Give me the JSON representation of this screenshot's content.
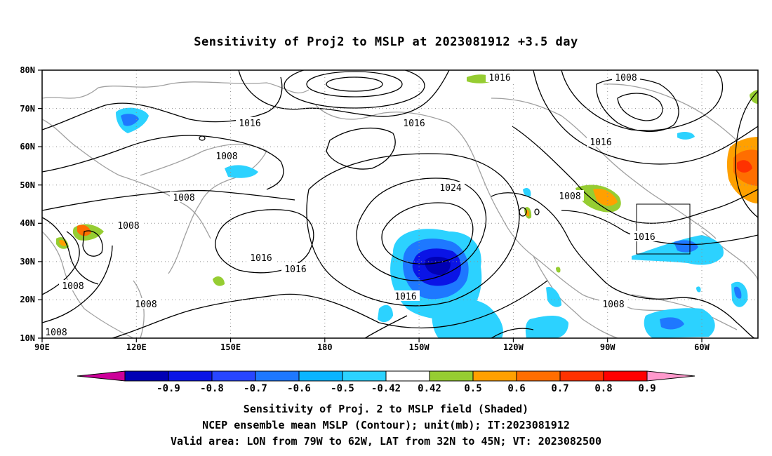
{
  "title": "Sensitivity of Proj2 to MSLP at 2023081912 +3.5 day",
  "axes": {
    "y_ticks": [
      "80N",
      "70N",
      "60N",
      "50N",
      "40N",
      "30N",
      "20N",
      "10N"
    ],
    "x_ticks": [
      "90E",
      "120E",
      "150E",
      "180",
      "150W",
      "120W",
      "90W",
      "60W"
    ]
  },
  "contour_labels": [
    {
      "text": "1016"
    },
    {
      "text": "1008"
    },
    {
      "text": "1016"
    },
    {
      "text": "1016"
    },
    {
      "text": "1008"
    },
    {
      "text": "1024"
    },
    {
      "text": "1016"
    },
    {
      "text": "1008"
    },
    {
      "text": "1008"
    },
    {
      "text": "1008"
    },
    {
      "text": "1016"
    },
    {
      "text": "1016"
    },
    {
      "text": "1016"
    },
    {
      "text": "1016"
    },
    {
      "text": "1008"
    },
    {
      "text": "1008"
    },
    {
      "text": "1008"
    },
    {
      "text": "1008"
    }
  ],
  "colorbar": {
    "colors": [
      "#cc0099",
      "#0000b4",
      "#0a14e6",
      "#2846ff",
      "#1e78ff",
      "#0ab4ff",
      "#2cd2ff",
      "#ffffff",
      "#96cd32",
      "#ffa000",
      "#ff6e00",
      "#ff3200",
      "#ff0000",
      "#ff99cc"
    ],
    "labels": [
      "-0.9",
      "-0.8",
      "-0.7",
      "-0.6",
      "-0.5",
      "-0.42",
      "0.42",
      "0.5",
      "0.6",
      "0.7",
      "0.8",
      "0.9"
    ]
  },
  "footer": {
    "line1": "Sensitivity of Proj. 2 to MSLP field (Shaded)",
    "line2": "NCEP ensemble mean MSLP (Contour); unit(mb); IT:2023081912",
    "line3": "Valid area: LON from 79W to 62W, LAT from 32N to 45N; VT: 2023082500"
  }
}
